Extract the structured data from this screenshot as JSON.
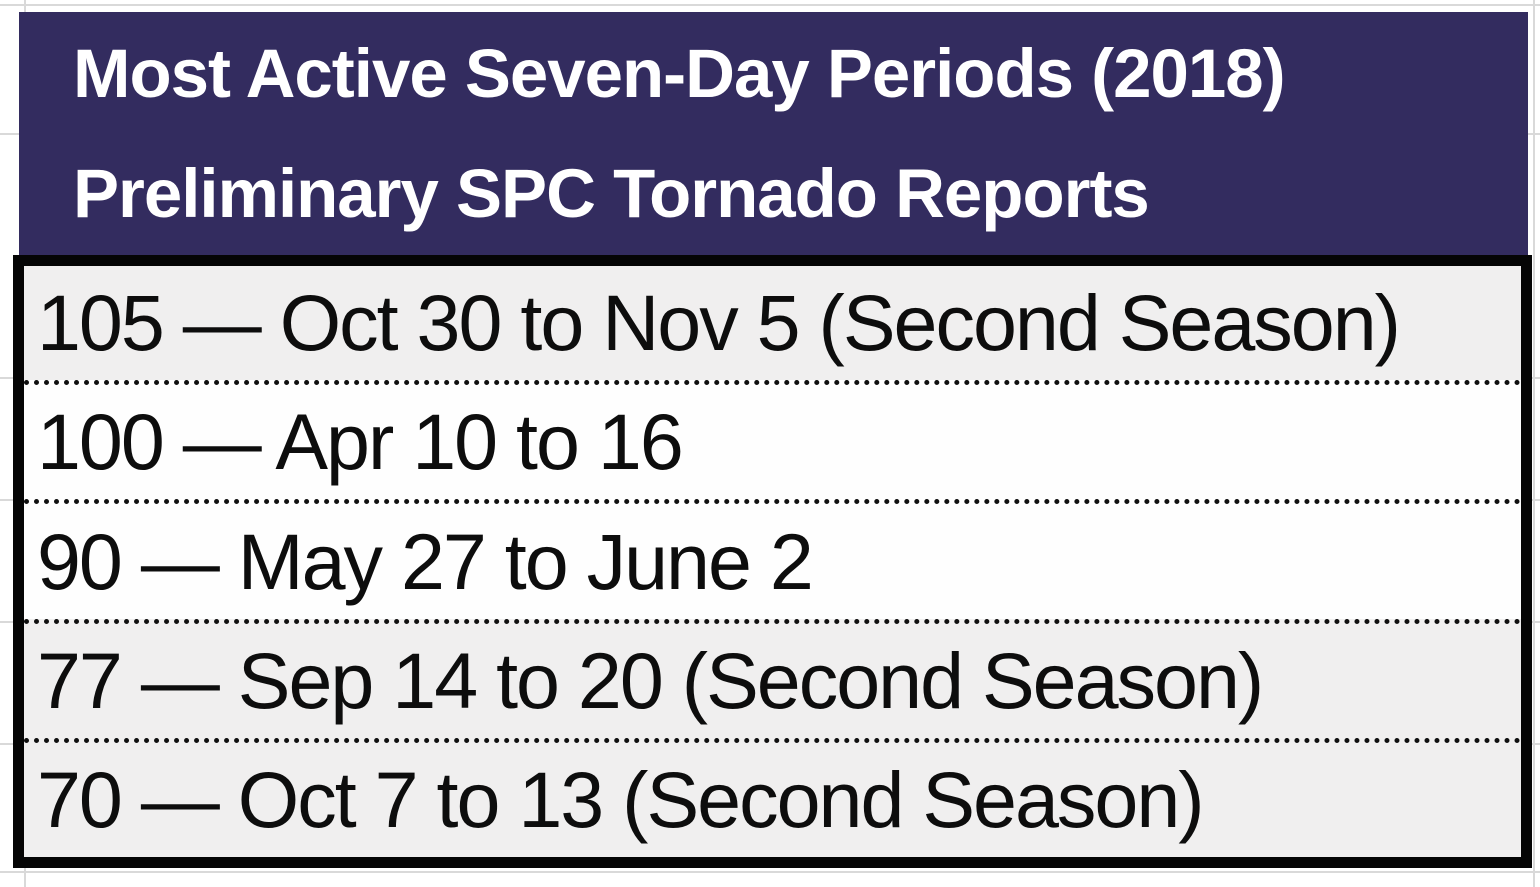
{
  "header": {
    "line1": "Most Active Seven-Day Periods (2018)",
    "line2": "Preliminary SPC Tornado Reports"
  },
  "table": {
    "rows": [
      {
        "display": "105 — Oct 30 to Nov 5 (Second Season)",
        "count": 105,
        "period": "Oct 30 to Nov 5",
        "note": "Second Season"
      },
      {
        "display": "100 — Apr 10 to 16",
        "count": 100,
        "period": "Apr 10 to 16",
        "note": ""
      },
      {
        "display": "90 — May 27 to June 2",
        "count": 90,
        "period": "May 27 to June 2",
        "note": ""
      },
      {
        "display": "77 — Sep 14 to 20 (Second Season)",
        "count": 77,
        "period": "Sep 14 to 20",
        "note": "Second Season"
      },
      {
        "display": "70 — Oct 7 to 13 (Second Season)",
        "count": 70,
        "period": "Oct 7 to 13",
        "note": "Second Season"
      }
    ]
  },
  "colors": {
    "header_bg": "#332C5F",
    "header_text": "#FFFFFF",
    "row_shaded_bg": "#F0EFEF",
    "row_plain_bg": "#FEFEFE",
    "row_text": "#0D0D0D",
    "table_border": "#000000",
    "gridline": "#D9D9D9"
  },
  "chart_data": {
    "type": "table",
    "title": "Most Active Seven-Day Periods (2018) Preliminary SPC Tornado Reports",
    "columns": [
      "tornado_reports",
      "seven_day_period"
    ],
    "rows": [
      [
        105,
        "Oct 30 to Nov 5 (Second Season)"
      ],
      [
        100,
        "Apr 10 to 16"
      ],
      [
        90,
        "May 27 to June 2"
      ],
      [
        77,
        "Sep 14 to 20 (Second Season)"
      ],
      [
        70,
        "Oct 7 to 13 (Second Season)"
      ]
    ]
  }
}
